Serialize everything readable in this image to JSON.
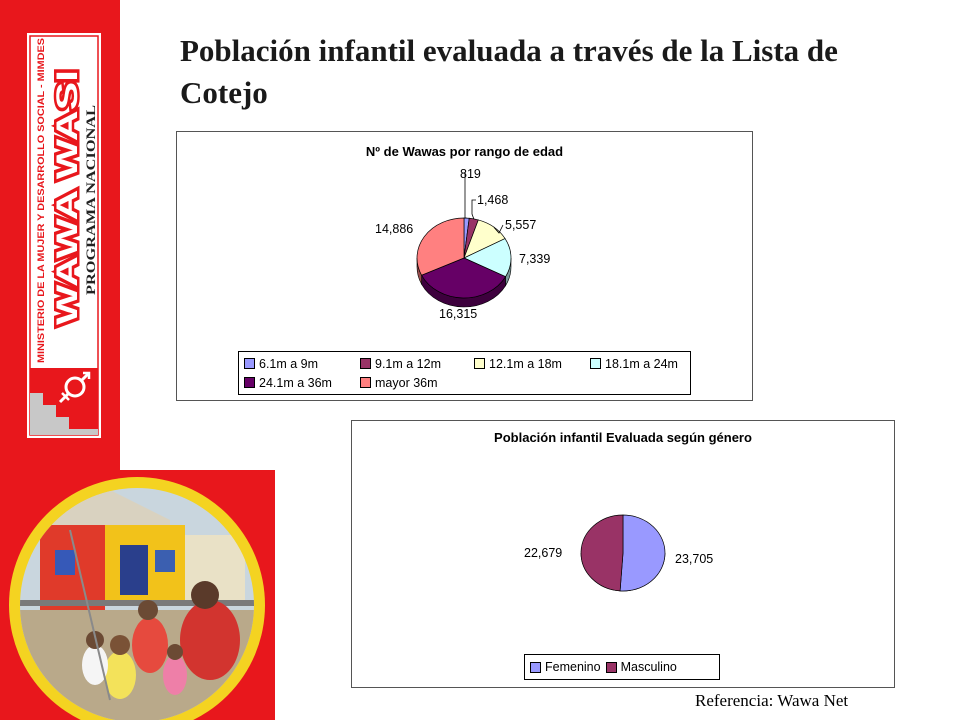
{
  "slide": {
    "title": "Población infantil evaluada a través de la Lista de Cotejo",
    "reference": "Referencia:  Wawa Net",
    "logo": {
      "ministry_text": "MINISTERIO DE LA MUJER Y DESARROLLO SOCIAL - MIMDES",
      "brand_text": "WAWA WASI",
      "program_text": "PROGRAMA NACIONAL",
      "brand_color": "#e8171c"
    }
  },
  "chart_data": [
    {
      "type": "pie",
      "title": "Nº de Wawas por rango de edad",
      "categories": [
        "6.1m a 9m",
        "9.1m a 12m",
        "12.1m a 18m",
        "18.1m a 24m",
        "24.1m a 36m",
        "mayor 36m"
      ],
      "values": [
        819,
        1468,
        5557,
        7339,
        16315,
        14886
      ],
      "value_labels": [
        "819",
        "1,468",
        "5,557",
        "7,339",
        "16,315",
        "14,886"
      ],
      "colors": [
        "#9999ff",
        "#993366",
        "#ffffcc",
        "#ccffff",
        "#660066",
        "#ff8080"
      ],
      "legend_position": "bottom"
    },
    {
      "type": "pie",
      "title": "Población infantil Evaluada según género",
      "categories": [
        "Femenino",
        "Masculino"
      ],
      "values": [
        23705,
        22679
      ],
      "value_labels": [
        "23,705",
        "22,679"
      ],
      "colors": [
        "#9999ff",
        "#993366"
      ],
      "legend_position": "bottom"
    }
  ]
}
